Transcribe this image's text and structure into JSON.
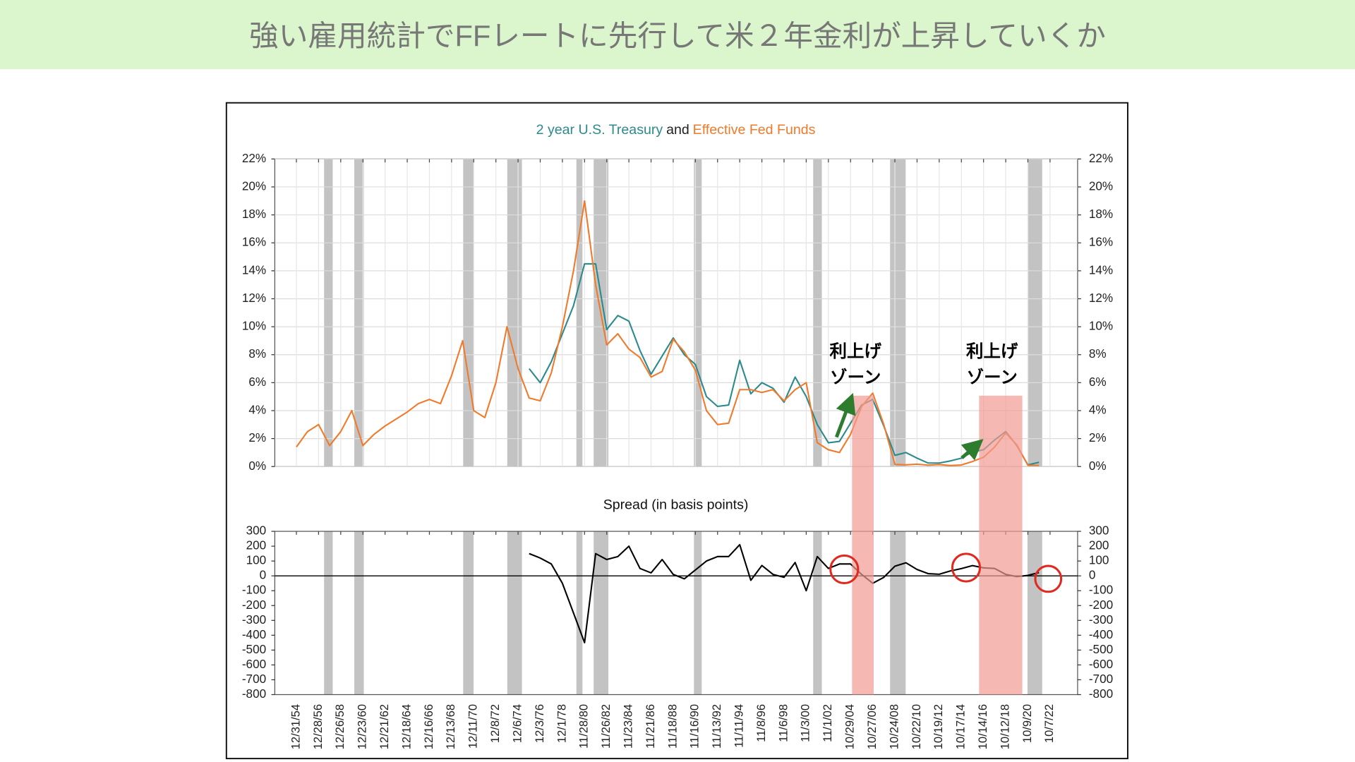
{
  "header": {
    "title": "強い雇用統計でFFレートに先行して米２年金利が上昇していくか"
  },
  "annotations": [
    {
      "lines": [
        "利上げ",
        "ゾーン"
      ]
    },
    {
      "lines": [
        "利上げ",
        "ゾーン"
      ]
    }
  ],
  "chart_data": [
    {
      "type": "line",
      "title_connector": "and",
      "series": [
        {
          "name": "2 year U.S. Treasury",
          "color": "#2b8a8c",
          "values": [
            null,
            null,
            null,
            null,
            null,
            null,
            null,
            null,
            null,
            null,
            null,
            null,
            null,
            null,
            null,
            null,
            null,
            null,
            null,
            null,
            null,
            7.0,
            6.0,
            7.5,
            9.5,
            11.5,
            14.5,
            14.5,
            9.8,
            10.8,
            10.4,
            8.3,
            6.6,
            7.9,
            9.2,
            8.0,
            7.3,
            5.0,
            4.3,
            4.4,
            7.6,
            5.2,
            6.0,
            5.6,
            4.6,
            6.4,
            5.0,
            3.0,
            1.7,
            1.8,
            3.1,
            4.4,
            4.8,
            2.9,
            0.8,
            1.0,
            0.6,
            0.25,
            0.25,
            0.4,
            0.6,
            1.05,
            1.2,
            1.9,
            2.5,
            1.5,
            0.12,
            0.3,
            null
          ]
        },
        {
          "name": "Effective Fed Funds",
          "color": "#f07a2b",
          "values": [
            1.4,
            2.5,
            3.0,
            1.5,
            2.5,
            4.0,
            1.5,
            2.3,
            2.9,
            3.4,
            3.9,
            4.5,
            4.8,
            4.5,
            6.5,
            9.0,
            4.0,
            3.5,
            6.0,
            10.0,
            7.0,
            4.9,
            4.7,
            6.7,
            10.0,
            14.0,
            19.0,
            13.0,
            8.7,
            9.5,
            8.4,
            7.8,
            6.4,
            6.8,
            9.1,
            8.2,
            6.9,
            4.0,
            3.0,
            3.1,
            5.5,
            5.5,
            5.3,
            5.5,
            4.7,
            5.5,
            6.0,
            1.7,
            1.2,
            1.0,
            2.3,
            4.3,
            5.25,
            3.0,
            0.15,
            0.12,
            0.17,
            0.1,
            0.14,
            0.07,
            0.11,
            0.36,
            0.66,
            1.4,
            2.4,
            1.55,
            0.09,
            0.08,
            null
          ]
        }
      ],
      "ylim": [
        0,
        22
      ],
      "yticks": [
        {
          "value": 0,
          "label": "0%"
        },
        {
          "value": 2,
          "label": "2%"
        },
        {
          "value": 4,
          "label": "4%"
        },
        {
          "value": 6,
          "label": "6%"
        },
        {
          "value": 8,
          "label": "8%"
        },
        {
          "value": 10,
          "label": "10%"
        },
        {
          "value": 12,
          "label": "12%"
        },
        {
          "value": 14,
          "label": "14%"
        },
        {
          "value": 16,
          "label": "16%"
        },
        {
          "value": 18,
          "label": "18%"
        },
        {
          "value": 20,
          "label": "20%"
        },
        {
          "value": 22,
          "label": "22%"
        }
      ],
      "grid": true
    },
    {
      "type": "line",
      "title": "Spread (in basis points)",
      "color": "#000000",
      "categories": [
        "12/31/54",
        null,
        "12/28/56",
        null,
        "12/26/58",
        null,
        "12/23/60",
        null,
        "12/21/62",
        null,
        "12/18/64",
        null,
        "12/16/66",
        null,
        "12/13/68",
        null,
        "12/11/70",
        null,
        "12/8/72",
        null,
        "12/6/74",
        null,
        "12/3/76",
        null,
        "12/1/78",
        null,
        "11/28/80",
        null,
        "11/26/82",
        null,
        "11/23/84",
        null,
        "11/21/86",
        null,
        "11/18/88",
        null,
        "11/16/90",
        null,
        "11/13/92",
        null,
        "11/11/94",
        null,
        "11/8/96",
        null,
        "11/6/98",
        null,
        "11/3/00",
        null,
        "11/1/02",
        null,
        "10/29/04",
        null,
        "10/27/06",
        null,
        "10/24/08",
        null,
        "10/22/10",
        null,
        "10/19/12",
        null,
        "10/17/14",
        null,
        "10/14/16",
        null,
        "10/12/18",
        null,
        "10/9/20",
        null,
        "10/7/22"
      ],
      "values": [
        null,
        null,
        null,
        null,
        null,
        null,
        null,
        null,
        null,
        null,
        null,
        null,
        null,
        null,
        null,
        null,
        null,
        null,
        null,
        null,
        null,
        150,
        120,
        80,
        -50,
        -250,
        -450,
        150,
        110,
        130,
        200,
        50,
        20,
        110,
        10,
        -20,
        40,
        100,
        130,
        130,
        210,
        -30,
        70,
        10,
        -10,
        90,
        -100,
        130,
        50,
        80,
        80,
        10,
        -50,
        -10,
        65,
        88,
        43,
        15,
        11,
        33,
        49,
        69,
        54,
        50,
        10,
        -5,
        3,
        22,
        null
      ],
      "ylim": [
        -800,
        300
      ],
      "yticks": [
        -800,
        -700,
        -600,
        -500,
        -400,
        -300,
        -200,
        -100,
        0,
        100,
        200,
        300
      ],
      "zero_line": true
    }
  ]
}
